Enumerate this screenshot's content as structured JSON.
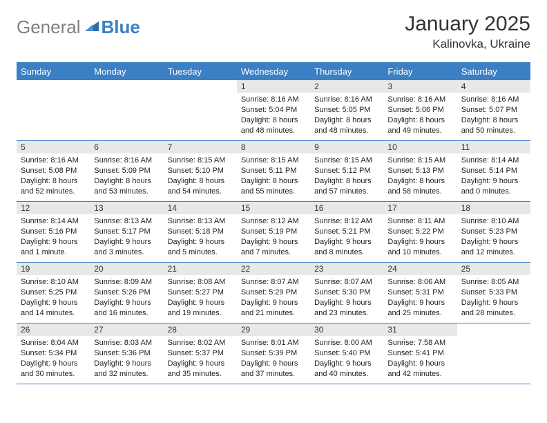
{
  "logo": {
    "part1": "General",
    "part2": "Blue"
  },
  "title": "January 2025",
  "location": "Kalinovka, Ukraine",
  "colors": {
    "header_bg": "#3b7fc4",
    "header_text": "#ffffff",
    "daynum_bg": "#e8e8e8",
    "border": "#3b7fc4",
    "logo_gray": "#808080",
    "logo_blue": "#3b7fc4",
    "text": "#333333",
    "background": "#ffffff"
  },
  "fonts": {
    "title_size": 30,
    "location_size": 17,
    "weekday_size": 13,
    "daynum_size": 12,
    "content_size": 11
  },
  "weekdays": [
    "Sunday",
    "Monday",
    "Tuesday",
    "Wednesday",
    "Thursday",
    "Friday",
    "Saturday"
  ],
  "weeks": [
    [
      null,
      null,
      null,
      {
        "n": "1",
        "sr": "Sunrise: 8:16 AM",
        "ss": "Sunset: 5:04 PM",
        "d1": "Daylight: 8 hours",
        "d2": "and 48 minutes."
      },
      {
        "n": "2",
        "sr": "Sunrise: 8:16 AM",
        "ss": "Sunset: 5:05 PM",
        "d1": "Daylight: 8 hours",
        "d2": "and 48 minutes."
      },
      {
        "n": "3",
        "sr": "Sunrise: 8:16 AM",
        "ss": "Sunset: 5:06 PM",
        "d1": "Daylight: 8 hours",
        "d2": "and 49 minutes."
      },
      {
        "n": "4",
        "sr": "Sunrise: 8:16 AM",
        "ss": "Sunset: 5:07 PM",
        "d1": "Daylight: 8 hours",
        "d2": "and 50 minutes."
      }
    ],
    [
      {
        "n": "5",
        "sr": "Sunrise: 8:16 AM",
        "ss": "Sunset: 5:08 PM",
        "d1": "Daylight: 8 hours",
        "d2": "and 52 minutes."
      },
      {
        "n": "6",
        "sr": "Sunrise: 8:16 AM",
        "ss": "Sunset: 5:09 PM",
        "d1": "Daylight: 8 hours",
        "d2": "and 53 minutes."
      },
      {
        "n": "7",
        "sr": "Sunrise: 8:15 AM",
        "ss": "Sunset: 5:10 PM",
        "d1": "Daylight: 8 hours",
        "d2": "and 54 minutes."
      },
      {
        "n": "8",
        "sr": "Sunrise: 8:15 AM",
        "ss": "Sunset: 5:11 PM",
        "d1": "Daylight: 8 hours",
        "d2": "and 55 minutes."
      },
      {
        "n": "9",
        "sr": "Sunrise: 8:15 AM",
        "ss": "Sunset: 5:12 PM",
        "d1": "Daylight: 8 hours",
        "d2": "and 57 minutes."
      },
      {
        "n": "10",
        "sr": "Sunrise: 8:15 AM",
        "ss": "Sunset: 5:13 PM",
        "d1": "Daylight: 8 hours",
        "d2": "and 58 minutes."
      },
      {
        "n": "11",
        "sr": "Sunrise: 8:14 AM",
        "ss": "Sunset: 5:14 PM",
        "d1": "Daylight: 9 hours",
        "d2": "and 0 minutes."
      }
    ],
    [
      {
        "n": "12",
        "sr": "Sunrise: 8:14 AM",
        "ss": "Sunset: 5:16 PM",
        "d1": "Daylight: 9 hours",
        "d2": "and 1 minute."
      },
      {
        "n": "13",
        "sr": "Sunrise: 8:13 AM",
        "ss": "Sunset: 5:17 PM",
        "d1": "Daylight: 9 hours",
        "d2": "and 3 minutes."
      },
      {
        "n": "14",
        "sr": "Sunrise: 8:13 AM",
        "ss": "Sunset: 5:18 PM",
        "d1": "Daylight: 9 hours",
        "d2": "and 5 minutes."
      },
      {
        "n": "15",
        "sr": "Sunrise: 8:12 AM",
        "ss": "Sunset: 5:19 PM",
        "d1": "Daylight: 9 hours",
        "d2": "and 7 minutes."
      },
      {
        "n": "16",
        "sr": "Sunrise: 8:12 AM",
        "ss": "Sunset: 5:21 PM",
        "d1": "Daylight: 9 hours",
        "d2": "and 8 minutes."
      },
      {
        "n": "17",
        "sr": "Sunrise: 8:11 AM",
        "ss": "Sunset: 5:22 PM",
        "d1": "Daylight: 9 hours",
        "d2": "and 10 minutes."
      },
      {
        "n": "18",
        "sr": "Sunrise: 8:10 AM",
        "ss": "Sunset: 5:23 PM",
        "d1": "Daylight: 9 hours",
        "d2": "and 12 minutes."
      }
    ],
    [
      {
        "n": "19",
        "sr": "Sunrise: 8:10 AM",
        "ss": "Sunset: 5:25 PM",
        "d1": "Daylight: 9 hours",
        "d2": "and 14 minutes."
      },
      {
        "n": "20",
        "sr": "Sunrise: 8:09 AM",
        "ss": "Sunset: 5:26 PM",
        "d1": "Daylight: 9 hours",
        "d2": "and 16 minutes."
      },
      {
        "n": "21",
        "sr": "Sunrise: 8:08 AM",
        "ss": "Sunset: 5:27 PM",
        "d1": "Daylight: 9 hours",
        "d2": "and 19 minutes."
      },
      {
        "n": "22",
        "sr": "Sunrise: 8:07 AM",
        "ss": "Sunset: 5:29 PM",
        "d1": "Daylight: 9 hours",
        "d2": "and 21 minutes."
      },
      {
        "n": "23",
        "sr": "Sunrise: 8:07 AM",
        "ss": "Sunset: 5:30 PM",
        "d1": "Daylight: 9 hours",
        "d2": "and 23 minutes."
      },
      {
        "n": "24",
        "sr": "Sunrise: 8:06 AM",
        "ss": "Sunset: 5:31 PM",
        "d1": "Daylight: 9 hours",
        "d2": "and 25 minutes."
      },
      {
        "n": "25",
        "sr": "Sunrise: 8:05 AM",
        "ss": "Sunset: 5:33 PM",
        "d1": "Daylight: 9 hours",
        "d2": "and 28 minutes."
      }
    ],
    [
      {
        "n": "26",
        "sr": "Sunrise: 8:04 AM",
        "ss": "Sunset: 5:34 PM",
        "d1": "Daylight: 9 hours",
        "d2": "and 30 minutes."
      },
      {
        "n": "27",
        "sr": "Sunrise: 8:03 AM",
        "ss": "Sunset: 5:36 PM",
        "d1": "Daylight: 9 hours",
        "d2": "and 32 minutes."
      },
      {
        "n": "28",
        "sr": "Sunrise: 8:02 AM",
        "ss": "Sunset: 5:37 PM",
        "d1": "Daylight: 9 hours",
        "d2": "and 35 minutes."
      },
      {
        "n": "29",
        "sr": "Sunrise: 8:01 AM",
        "ss": "Sunset: 5:39 PM",
        "d1": "Daylight: 9 hours",
        "d2": "and 37 minutes."
      },
      {
        "n": "30",
        "sr": "Sunrise: 8:00 AM",
        "ss": "Sunset: 5:40 PM",
        "d1": "Daylight: 9 hours",
        "d2": "and 40 minutes."
      },
      {
        "n": "31",
        "sr": "Sunrise: 7:58 AM",
        "ss": "Sunset: 5:41 PM",
        "d1": "Daylight: 9 hours",
        "d2": "and 42 minutes."
      },
      null
    ]
  ]
}
